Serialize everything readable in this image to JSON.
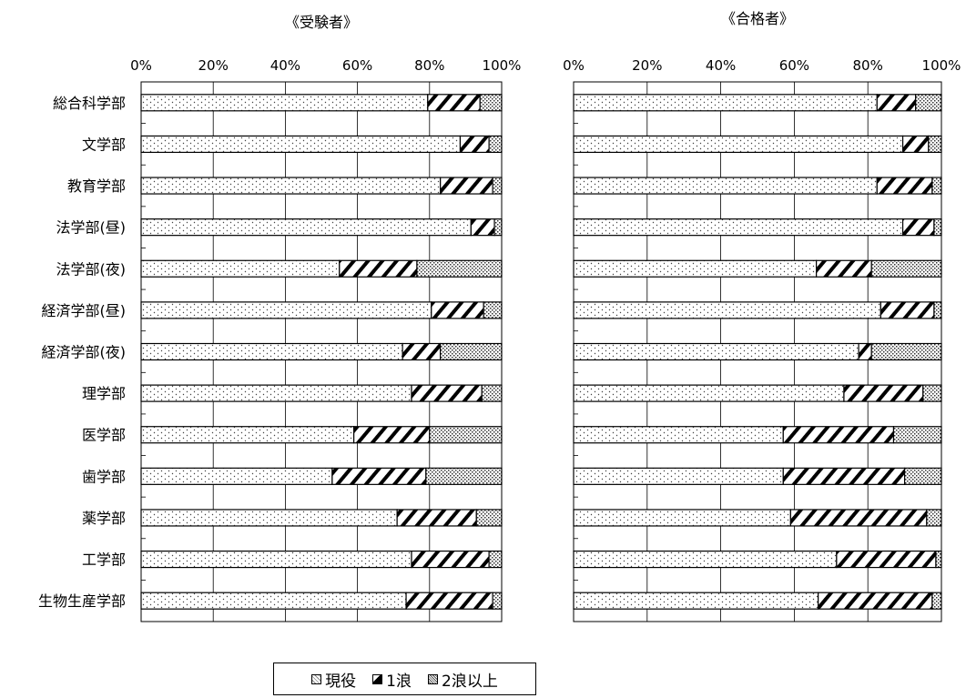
{
  "chart_data": [
    {
      "type": "bar",
      "orientation": "horizontal",
      "stacked": "percent",
      "title": "《受験者》",
      "categories": [
        "総合科学部",
        "文学部",
        "教育学部",
        "法学部(昼)",
        "法学部(夜)",
        "経済学部(昼)",
        "経済学部(夜)",
        "理学部",
        "医学部",
        "歯学部",
        "薬学部",
        "工学部",
        "生物生産学部"
      ],
      "series": [
        {
          "name": "現役",
          "values": [
            79.5,
            88.5,
            83.0,
            91.5,
            55.0,
            80.5,
            72.5,
            75.0,
            59.0,
            53.0,
            71.0,
            75.0,
            73.5
          ]
        },
        {
          "name": "1浪",
          "values": [
            14.5,
            8.0,
            14.5,
            6.5,
            21.5,
            14.5,
            10.5,
            19.5,
            21.0,
            26.0,
            22.0,
            21.5,
            24.0
          ]
        },
        {
          "name": "2浪以上",
          "values": [
            6.0,
            3.5,
            2.5,
            2.0,
            23.5,
            5.0,
            17.0,
            5.5,
            20.0,
            21.0,
            7.0,
            3.5,
            2.5
          ]
        }
      ],
      "xlim": [
        0,
        100
      ],
      "xticks": [
        "0%",
        "20%",
        "40%",
        "60%",
        "80%",
        "100%"
      ],
      "grid": true
    },
    {
      "type": "bar",
      "orientation": "horizontal",
      "stacked": "percent",
      "title": "《合格者》",
      "categories": [
        "総合科学部",
        "文学部",
        "教育学部",
        "法学部(昼)",
        "法学部(夜)",
        "経済学部(昼)",
        "経済学部(夜)",
        "理学部",
        "医学部",
        "歯学部",
        "薬学部",
        "工学部",
        "生物生産学部"
      ],
      "series": [
        {
          "name": "現役",
          "values": [
            82.5,
            89.5,
            82.5,
            89.5,
            66.0,
            83.5,
            77.5,
            73.5,
            57.0,
            57.0,
            59.0,
            71.5,
            66.5
          ]
        },
        {
          "name": "1浪",
          "values": [
            10.5,
            7.0,
            15.0,
            8.5,
            15.0,
            14.5,
            3.5,
            21.5,
            30.0,
            33.0,
            37.0,
            27.0,
            31.0
          ]
        },
        {
          "name": "2浪以上",
          "values": [
            7.0,
            3.5,
            2.5,
            2.0,
            19.0,
            2.0,
            19.0,
            5.0,
            13.0,
            10.0,
            4.0,
            1.5,
            2.5
          ]
        }
      ],
      "xlim": [
        0,
        100
      ],
      "xticks": [
        "0%",
        "20%",
        "40%",
        "60%",
        "80%",
        "100%"
      ],
      "grid": true
    }
  ],
  "legend": {
    "placement": "bottom-center",
    "items": [
      {
        "label": "現役",
        "pattern": "dots-light"
      },
      {
        "label": "1浪",
        "pattern": "diagonal-hatch"
      },
      {
        "label": "2浪以上",
        "pattern": "dots-dense"
      }
    ]
  }
}
